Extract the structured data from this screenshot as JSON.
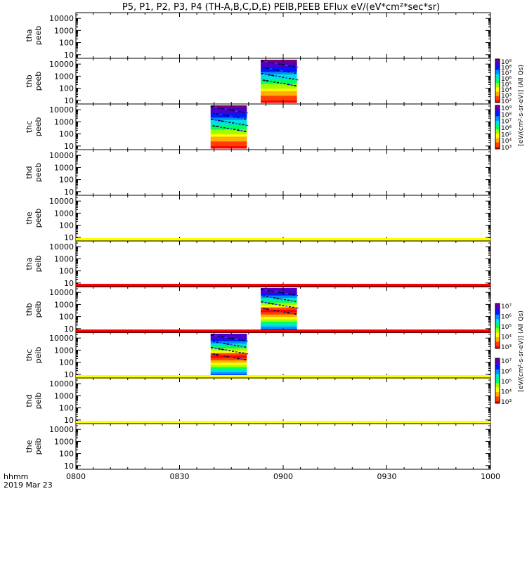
{
  "title": "P5, P1, P2, P3, P4 (TH-A,B,C,D,E) PEIB,PEEB EFlux eV/(eV*cm²*sec*sr)",
  "chart_data": {
    "type": "heatmap",
    "title": "P5, P1, P2, P3, P4 (TH-A,B,C,D,E) PEIB,PEEB EFlux eV/(eV*cm²*sec*sr)",
    "x_axis": {
      "label_line1": "hhmm",
      "label_line2": "2019 Mar 23",
      "ticks": [
        "0800",
        "0830",
        "0900",
        "0930",
        "1000"
      ],
      "range_hhmm": [
        "0800",
        "1000"
      ],
      "range_minutes": [
        0,
        120
      ]
    },
    "y_axis": {
      "scale": "log",
      "ticks": [
        "10",
        "100",
        "1000",
        "10000"
      ],
      "range_eV": [
        5,
        30000
      ]
    },
    "panels": [
      {
        "probe": "tha",
        "product": "peeb",
        "label1": "tha",
        "label2": "peeb",
        "data": false
      },
      {
        "probe": "thb",
        "product": "peeb",
        "label1": "thb",
        "label2": "peeb",
        "data": true,
        "start_min": 53.5,
        "end_min": 64.0,
        "colorbar": "peeb"
      },
      {
        "probe": "thc",
        "product": "peeb",
        "label1": "thc",
        "label2": "peeb",
        "data": true,
        "start_min": 39.0,
        "end_min": 49.5,
        "colorbar": "peeb"
      },
      {
        "probe": "thd",
        "product": "peeb",
        "label1": "thd",
        "label2": "peeb",
        "data": false
      },
      {
        "probe": "the",
        "product": "peeb",
        "label1": "the",
        "label2": "peeb",
        "data": false,
        "bar_color": "#ffff00"
      },
      {
        "probe": "tha",
        "product": "peib",
        "label1": "tha",
        "label2": "peib",
        "data": false,
        "bar_color": "#ff0000"
      },
      {
        "probe": "thb",
        "product": "peib",
        "label1": "thb",
        "label2": "peib",
        "data": true,
        "start_min": 53.5,
        "end_min": 64.0,
        "colorbar": "peib",
        "bar_color": "#ff0000"
      },
      {
        "probe": "thc",
        "product": "peib",
        "label1": "thc",
        "label2": "peib",
        "data": true,
        "start_min": 39.0,
        "end_min": 49.5,
        "colorbar": "peib",
        "bar_color": "#ffff00"
      },
      {
        "probe": "thd",
        "product": "peib",
        "label1": "thd",
        "label2": "peib",
        "data": false,
        "bar_color": "#ffff00"
      },
      {
        "probe": "the",
        "product": "peib",
        "label1": "the",
        "label2": "peib",
        "data": false
      }
    ],
    "colorbars": {
      "peeb": {
        "ticks": [
          "10⁹",
          "10⁸",
          "10⁷",
          "10⁶",
          "10⁵",
          "10⁴",
          "10³",
          "10²"
        ],
        "label": "[eV/(cm²-s-sr-eV)] (All Qs)"
      },
      "peeb2": {
        "ticks": [
          "10⁹",
          "10⁸",
          "10⁷",
          "10⁶",
          "10⁵",
          "10⁴",
          "10³"
        ]
      },
      "peib": {
        "ticks": [
          "10⁷",
          "10⁶",
          "10⁵",
          "10⁴",
          "10³"
        ],
        "label": "[eV/(cm²-s-sr-eV)] (All Qs)"
      },
      "peib2": {
        "ticks": [
          "10⁷",
          "10⁶",
          "10⁵",
          "10⁴",
          "10³"
        ]
      }
    },
    "palette": [
      "#7a007a",
      "#4a00c8",
      "#0018ff",
      "#0090ff",
      "#00e0e0",
      "#00ff60",
      "#a0ff00",
      "#ffff00",
      "#ffb000",
      "#ff4000",
      "#ff0000"
    ]
  }
}
